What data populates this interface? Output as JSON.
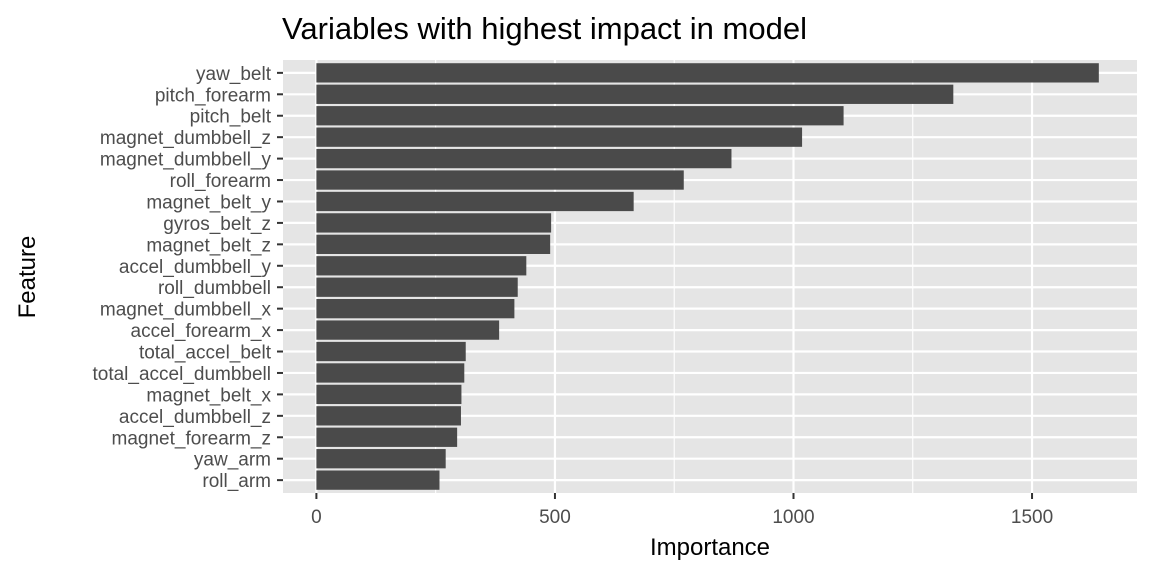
{
  "chart_data": {
    "type": "bar",
    "orientation": "horizontal",
    "title": "Variables with highest impact in model",
    "xlabel": "Importance",
    "ylabel": "Feature",
    "xlim": [
      -70,
      1720
    ],
    "xticks": [
      0,
      500,
      1000,
      1500
    ],
    "xtick_labels": [
      "0",
      "500",
      "1000",
      "1500"
    ],
    "grid": true,
    "legend": "none",
    "bar_color": "#4a4a4a",
    "panel_color": "#e5e5e5",
    "categories": [
      "yaw_belt",
      "pitch_forearm",
      "pitch_belt",
      "magnet_dumbbell_z",
      "magnet_dumbbell_y",
      "roll_forearm",
      "magnet_belt_y",
      "gyros_belt_z",
      "magnet_belt_z",
      "accel_dumbbell_y",
      "roll_dumbbell",
      "magnet_dumbbell_x",
      "accel_forearm_x",
      "total_accel_belt",
      "total_accel_dumbbell",
      "magnet_belt_x",
      "accel_dumbbell_z",
      "magnet_forearm_z",
      "yaw_arm",
      "roll_arm"
    ],
    "values": [
      1640,
      1335,
      1105,
      1018,
      870,
      770,
      665,
      492,
      490,
      440,
      422,
      415,
      383,
      313,
      310,
      304,
      303,
      295,
      271,
      258
    ]
  }
}
